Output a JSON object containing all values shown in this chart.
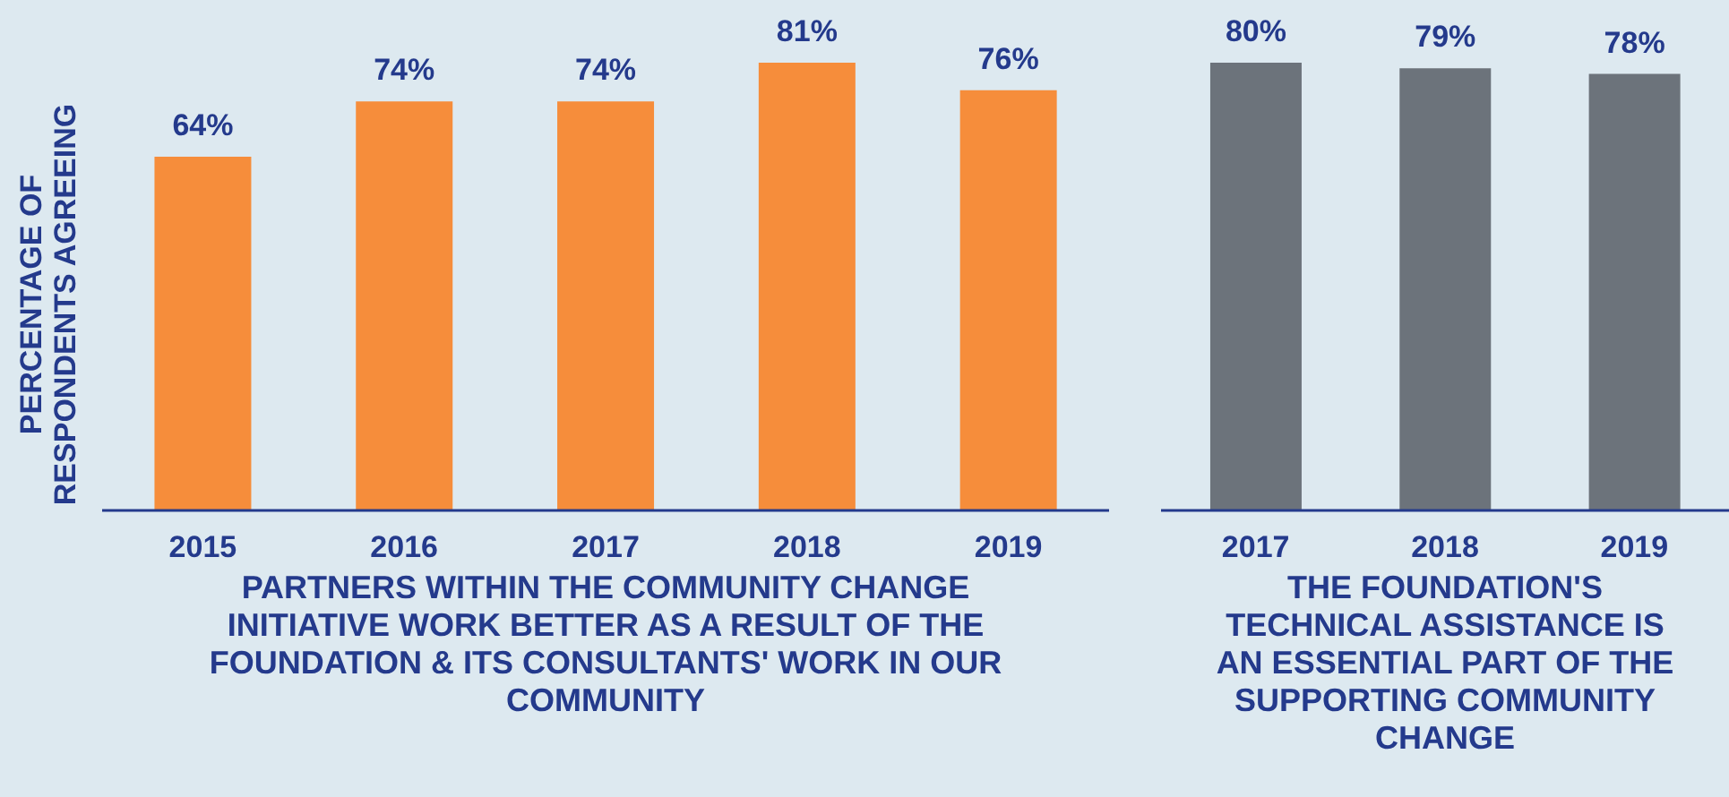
{
  "chart_data": [
    {
      "type": "bar",
      "categories": [
        "2015",
        "2016",
        "2017",
        "2018",
        "2019"
      ],
      "values": [
        64,
        74,
        74,
        81,
        76
      ],
      "value_labels": [
        "64%",
        "74%",
        "74%",
        "81%",
        "76%"
      ],
      "color": "#f68d3b",
      "xlabel": "PARTNERS WITHIN THE COMMUNITY CHANGE INITIATIVE WORK BETTER AS A RESULT OF THE FOUNDATION & ITS CONSULTANTS' WORK IN OUR COMMUNITY",
      "ylabel": "PERCENTAGE OF RESPONDENTS AGREEING"
    },
    {
      "type": "bar",
      "categories": [
        "2017",
        "2018",
        "2019"
      ],
      "values": [
        80,
        79,
        78
      ],
      "value_labels": [
        "80%",
        "79%",
        "78%"
      ],
      "color": "#6c737b",
      "xlabel": "THE FOUNDATION'S TECHNICAL ASSISTANCE IS AN ESSENTIAL PART OF THE SUPPORTING COMMUNITY CHANGE"
    }
  ]
}
